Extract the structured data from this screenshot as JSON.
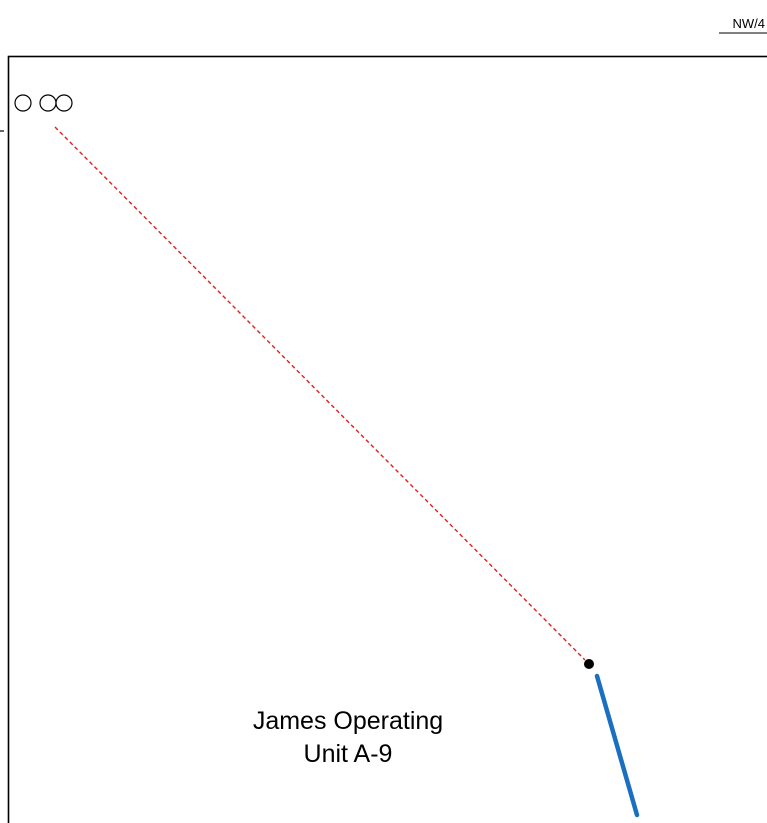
{
  "sheet_reference": "NW/4",
  "unit_label": {
    "line1": "James Operating",
    "line2": "Unit A-9"
  },
  "colors": {
    "boundary": "#000000",
    "proposed_path": "#e0201a",
    "lateral": "#1a6fc0",
    "surface_marker": "#000000",
    "well_symbol": "#000000"
  }
}
